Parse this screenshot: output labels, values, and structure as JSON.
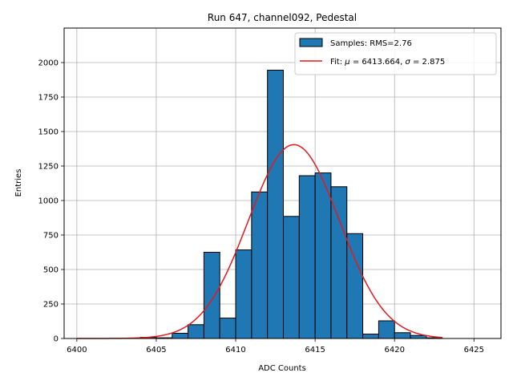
{
  "chart_data": {
    "type": "bar",
    "title": "Run 647, channel092, Pedestal",
    "xlabel": "ADC Counts",
    "ylabel": "Entries",
    "xlim": [
      6399.2,
      6426.7
    ],
    "ylim": [
      0,
      2250
    ],
    "xticks": [
      6400,
      6405,
      6410,
      6415,
      6420,
      6425
    ],
    "yticks": [
      0,
      250,
      500,
      750,
      1000,
      1250,
      1500,
      1750,
      2000
    ],
    "grid": true,
    "legend_position": "top-right",
    "bin_width": 1,
    "bins": [
      {
        "left": 6404,
        "count": 8
      },
      {
        "left": 6405,
        "count": 5
      },
      {
        "left": 6406,
        "count": 38
      },
      {
        "left": 6407,
        "count": 100
      },
      {
        "left": 6408,
        "count": 625
      },
      {
        "left": 6409,
        "count": 148
      },
      {
        "left": 6410,
        "count": 642
      },
      {
        "left": 6411,
        "count": 1062
      },
      {
        "left": 6412,
        "count": 1945
      },
      {
        "left": 6413,
        "count": 885
      },
      {
        "left": 6414,
        "count": 1180
      },
      {
        "left": 6415,
        "count": 1200
      },
      {
        "left": 6416,
        "count": 1100
      },
      {
        "left": 6417,
        "count": 760
      },
      {
        "left": 6418,
        "count": 32
      },
      {
        "left": 6419,
        "count": 128
      },
      {
        "left": 6420,
        "count": 42
      },
      {
        "left": 6421,
        "count": 22
      },
      {
        "left": 6422,
        "count": 5
      }
    ],
    "fit": {
      "mu": 6413.664,
      "sigma": 2.875,
      "amplitude": 1405,
      "x_range": [
        6400,
        6423
      ]
    },
    "series": [
      {
        "name": "Samples: RMS=2.76",
        "color": "#1f77b4",
        "edge_color": "#000000"
      },
      {
        "name_prefix": "Fit: ",
        "mu_symbol": "μ",
        "mu_text": " = 6413.664, ",
        "sigma_symbol": "σ",
        "sigma_text": " = 2.875",
        "color": "#e41a1c"
      }
    ]
  }
}
